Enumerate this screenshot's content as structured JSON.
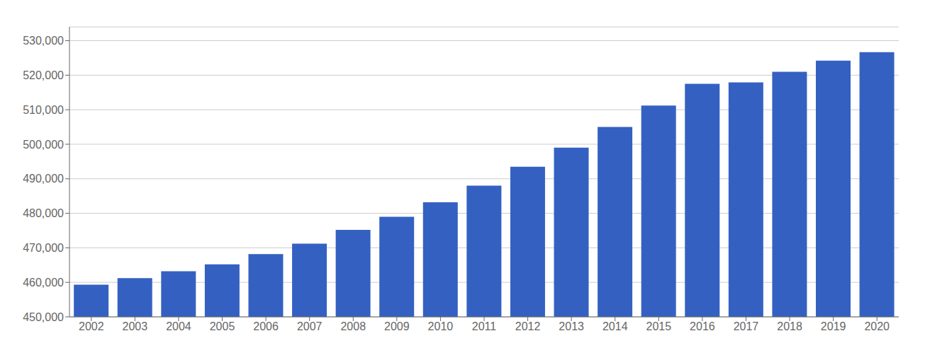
{
  "chart_data": {
    "type": "bar",
    "categories": [
      "2002",
      "2003",
      "2004",
      "2005",
      "2006",
      "2007",
      "2008",
      "2009",
      "2010",
      "2011",
      "2012",
      "2013",
      "2014",
      "2015",
      "2016",
      "2017",
      "2018",
      "2019",
      "2020"
    ],
    "values": [
      459300,
      461200,
      463200,
      465200,
      468200,
      471200,
      475200,
      479000,
      483200,
      488000,
      493500,
      499000,
      505000,
      511200,
      517500,
      517900,
      521000,
      524200,
      526700
    ],
    "color": "#3461c1",
    "ylim": [
      450000,
      534000
    ],
    "yticks": [
      {
        "value": 450000,
        "label": "450,000"
      },
      {
        "value": 460000,
        "label": "460,000"
      },
      {
        "value": 470000,
        "label": "470,000"
      },
      {
        "value": 480000,
        "label": "480,000"
      },
      {
        "value": 490000,
        "label": "490,000"
      },
      {
        "value": 500000,
        "label": "500,000"
      },
      {
        "value": 510000,
        "label": "510,000"
      },
      {
        "value": 520000,
        "label": "520,000"
      },
      {
        "value": 530000,
        "label": "530,000"
      }
    ],
    "grid": true
  }
}
